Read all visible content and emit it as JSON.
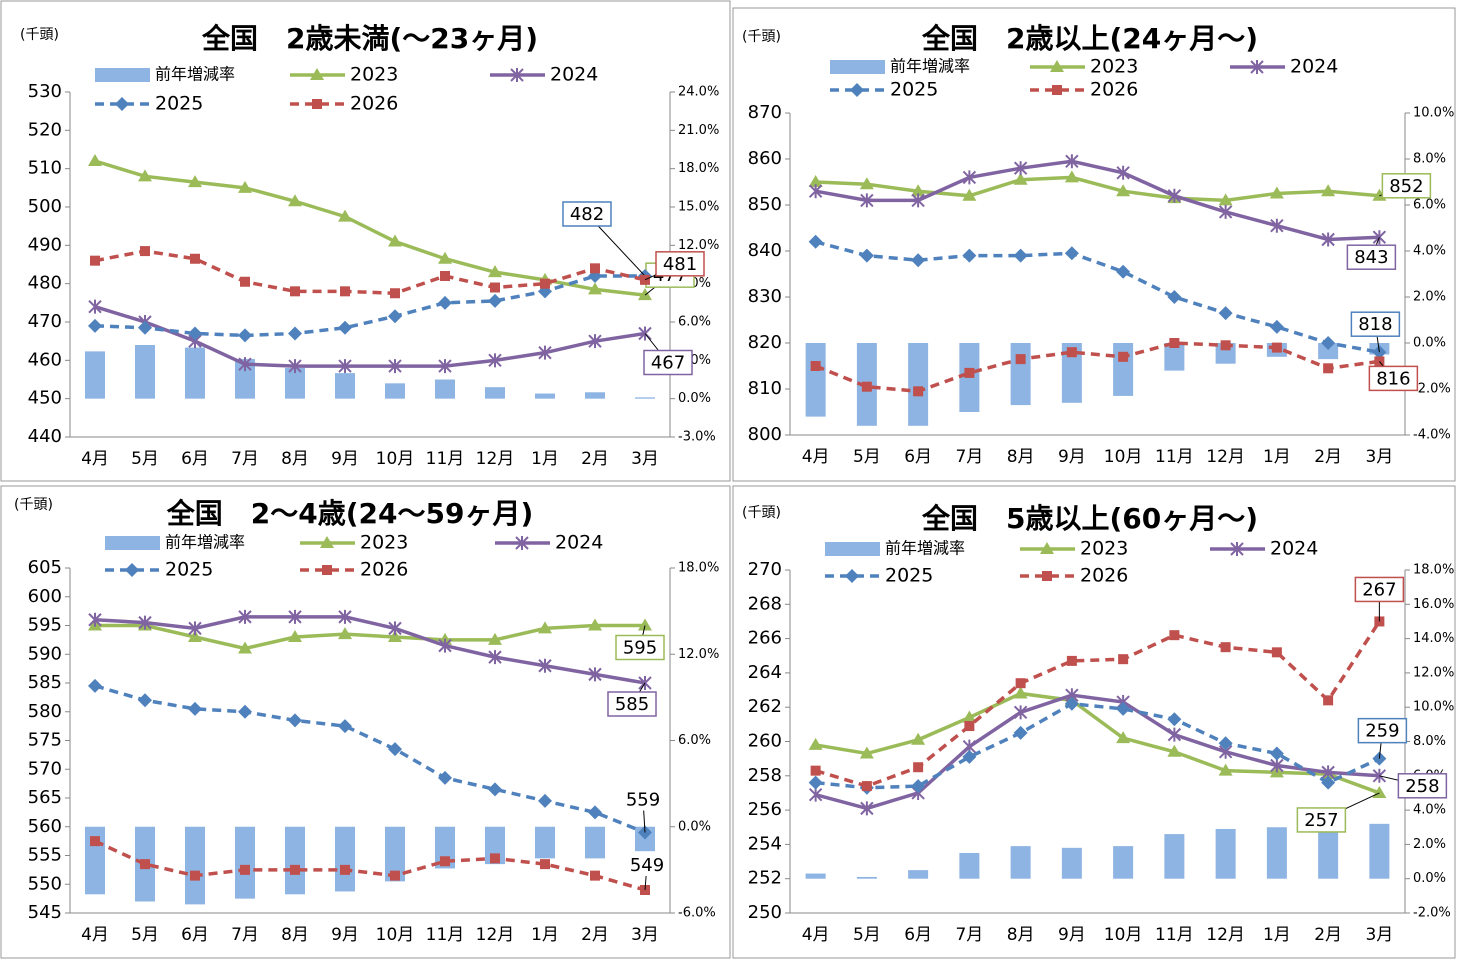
{
  "chart_data": [
    {
      "type": "combo",
      "title": "全国　2歳未満(～23ヶ月)",
      "unit_label": "(千頭)",
      "categories": [
        "4月",
        "5月",
        "6月",
        "7月",
        "8月",
        "9月",
        "10月",
        "11月",
        "12月",
        "1月",
        "2月",
        "3月"
      ],
      "series": [
        {
          "name": "前年増減率",
          "type": "bar",
          "axis": "y2",
          "color": "#8db4e2",
          "values": [
            3.7,
            4.2,
            4.0,
            3.1,
            2.4,
            2.0,
            1.2,
            1.5,
            0.9,
            0.4,
            0.5,
            0.1
          ]
        },
        {
          "name": "2023",
          "type": "line",
          "color": "#9bbb59",
          "marker": "triangle",
          "dashed": false,
          "values": [
            512,
            508,
            506.5,
            505,
            501.5,
            497.5,
            491,
            486.5,
            483,
            481,
            478.5,
            477
          ]
        },
        {
          "name": "2024",
          "type": "line",
          "color": "#8064a2",
          "marker": "cross",
          "dashed": false,
          "values": [
            474,
            470,
            465,
            459,
            458.5,
            458.5,
            458.5,
            458.5,
            460,
            462,
            465,
            467
          ]
        },
        {
          "name": "2025",
          "type": "line",
          "color": "#4f81bd",
          "marker": "diamond",
          "dashed": true,
          "values": [
            469,
            468.5,
            467,
            466.5,
            467,
            468.5,
            471.5,
            475,
            475.5,
            478,
            482,
            482
          ]
        },
        {
          "name": "2026",
          "type": "line",
          "color": "#c0504d",
          "marker": "square",
          "dashed": true,
          "values": [
            486,
            488.5,
            486.5,
            480.5,
            478,
            478,
            477.5,
            482,
            479,
            480,
            484,
            481
          ]
        }
      ],
      "ylim": [
        440,
        530
      ],
      "yticks": [
        440,
        450,
        460,
        470,
        480,
        490,
        500,
        510,
        520,
        530
      ],
      "y2lim": [
        -3,
        24
      ],
      "y2ticks": [
        {
          "value": -3,
          "label": "-3.0%"
        },
        {
          "value": 0,
          "label": "0.0%"
        },
        {
          "value": 3,
          "label": "3.0%"
        },
        {
          "value": 6,
          "label": "6.0%"
        },
        {
          "value": 9,
          "label": "9.0%"
        },
        {
          "value": 12,
          "label": "12.0%"
        },
        {
          "value": 15,
          "label": "15.0%"
        },
        {
          "value": 18,
          "label": "18.0%"
        },
        {
          "value": 21,
          "label": "21.0%"
        },
        {
          "value": 24,
          "label": "24.0%"
        }
      ]
    },
    {
      "type": "combo",
      "title": "全国　2歳以上(24ヶ月～)",
      "unit_label": "(千頭)",
      "categories": [
        "4月",
        "5月",
        "6月",
        "7月",
        "8月",
        "9月",
        "10月",
        "11月",
        "12月",
        "1月",
        "2月",
        "3月"
      ],
      "series": [
        {
          "name": "前年増減率",
          "type": "bar",
          "axis": "y2",
          "color": "#8db4e2",
          "values": [
            -3.2,
            -3.6,
            -3.6,
            -3.0,
            -2.7,
            -2.6,
            -2.3,
            -1.2,
            -0.9,
            -0.6,
            -0.7,
            -0.5
          ]
        },
        {
          "name": "2023",
          "type": "line",
          "color": "#9bbb59",
          "marker": "triangle",
          "dashed": false,
          "values": [
            855,
            854.5,
            853,
            852,
            855.5,
            856,
            853,
            851.5,
            851,
            852.5,
            853,
            852
          ]
        },
        {
          "name": "2024",
          "type": "line",
          "color": "#8064a2",
          "marker": "cross",
          "dashed": false,
          "values": [
            853,
            851,
            851,
            856,
            858,
            859.5,
            857,
            852,
            848.5,
            845.5,
            842.5,
            843
          ]
        },
        {
          "name": "2025",
          "type": "line",
          "color": "#4f81bd",
          "marker": "diamond",
          "dashed": true,
          "values": [
            842,
            839,
            838,
            839,
            839,
            839.5,
            835.5,
            830,
            826.5,
            823.5,
            820,
            818
          ]
        },
        {
          "name": "2026",
          "type": "line",
          "color": "#c0504d",
          "marker": "square",
          "dashed": true,
          "values": [
            815,
            810.5,
            809.5,
            813.5,
            816.5,
            818,
            817,
            820,
            819.5,
            819,
            814.5,
            816
          ]
        }
      ],
      "ylim": [
        800,
        870
      ],
      "yticks": [
        800,
        810,
        820,
        830,
        840,
        850,
        860,
        870
      ],
      "y2lim": [
        -4,
        10
      ],
      "y2ticks": [
        {
          "value": -4,
          "label": "-4.0%"
        },
        {
          "value": -2,
          "label": "-2.0%"
        },
        {
          "value": 0,
          "label": "0.0%"
        },
        {
          "value": 2,
          "label": "2.0%"
        },
        {
          "value": 4,
          "label": "4.0%"
        },
        {
          "value": 6,
          "label": "6.0%"
        },
        {
          "value": 8,
          "label": "8.0%"
        },
        {
          "value": 10,
          "label": "10.0%"
        }
      ]
    },
    {
      "type": "combo",
      "title": "全国　2～4歳(24～59ヶ月)",
      "unit_label": "(千頭)",
      "categories": [
        "4月",
        "5月",
        "6月",
        "7月",
        "8月",
        "9月",
        "10月",
        "11月",
        "12月",
        "1月",
        "2月",
        "3月"
      ],
      "series": [
        {
          "name": "前年増減率",
          "type": "bar",
          "axis": "y2",
          "color": "#8db4e2",
          "values": [
            -4.7,
            -5.2,
            -5.4,
            -5.0,
            -4.7,
            -4.5,
            -3.8,
            -2.9,
            -2.6,
            -2.2,
            -2.2,
            -1.7
          ]
        },
        {
          "name": "2023",
          "type": "line",
          "color": "#9bbb59",
          "marker": "triangle",
          "dashed": false,
          "values": [
            595,
            595,
            593,
            591,
            593,
            593.5,
            593,
            592.5,
            592.5,
            594.5,
            595,
            595
          ]
        },
        {
          "name": "2024",
          "type": "line",
          "color": "#8064a2",
          "marker": "cross",
          "dashed": false,
          "values": [
            596,
            595.5,
            594.5,
            596.5,
            596.5,
            596.5,
            594.5,
            591.5,
            589.5,
            588,
            586.5,
            585
          ]
        },
        {
          "name": "2025",
          "type": "line",
          "color": "#4f81bd",
          "marker": "diamond",
          "dashed": true,
          "values": [
            584.5,
            582,
            580.5,
            580,
            578.5,
            577.5,
            573.5,
            568.5,
            566.5,
            564.5,
            562.5,
            559
          ]
        },
        {
          "name": "2026",
          "type": "line",
          "color": "#c0504d",
          "marker": "square",
          "dashed": true,
          "values": [
            557.5,
            553.5,
            551.5,
            552.5,
            552.5,
            552.5,
            551.5,
            554,
            554.5,
            553.5,
            551.5,
            549
          ]
        }
      ],
      "ylim": [
        545,
        605
      ],
      "yticks": [
        545,
        550,
        555,
        560,
        565,
        570,
        575,
        580,
        585,
        590,
        595,
        600,
        605
      ],
      "y2lim": [
        -6,
        18
      ],
      "y2ticks": [
        {
          "value": -6,
          "label": "-6.0%"
        },
        {
          "value": 0,
          "label": "0.0%"
        },
        {
          "value": 6,
          "label": "6.0%"
        },
        {
          "value": 12,
          "label": "12.0%"
        },
        {
          "value": 18,
          "label": "18.0%"
        }
      ]
    },
    {
      "type": "combo",
      "title": "全国　5歳以上(60ヶ月～)",
      "unit_label": "(千頭)",
      "categories": [
        "4月",
        "5月",
        "6月",
        "7月",
        "8月",
        "9月",
        "10月",
        "11月",
        "12月",
        "1月",
        "2月",
        "3月"
      ],
      "series": [
        {
          "name": "前年増減率",
          "type": "bar",
          "axis": "y2",
          "color": "#8db4e2",
          "values": [
            0.3,
            0.1,
            0.5,
            1.5,
            1.9,
            1.8,
            1.9,
            2.6,
            2.9,
            3.0,
            3.1,
            3.2
          ]
        },
        {
          "name": "2023",
          "type": "line",
          "color": "#9bbb59",
          "marker": "triangle",
          "dashed": false,
          "values": [
            259.8,
            259.3,
            260.1,
            261.4,
            262.8,
            262.4,
            260.2,
            259.4,
            258.3,
            258.2,
            258.1,
            257
          ]
        },
        {
          "name": "2024",
          "type": "line",
          "color": "#8064a2",
          "marker": "cross",
          "dashed": false,
          "values": [
            256.9,
            256.1,
            257.0,
            259.7,
            261.7,
            262.7,
            262.3,
            260.4,
            259.4,
            258.6,
            258.2,
            258
          ]
        },
        {
          "name": "2025",
          "type": "line",
          "color": "#4f81bd",
          "marker": "diamond",
          "dashed": true,
          "values": [
            257.6,
            257.3,
            257.4,
            259.1,
            260.5,
            262.2,
            261.9,
            261.3,
            259.9,
            259.3,
            257.6,
            259
          ]
        },
        {
          "name": "2026",
          "type": "line",
          "color": "#c0504d",
          "marker": "square",
          "dashed": true,
          "values": [
            258.3,
            257.4,
            258.5,
            260.9,
            263.4,
            264.7,
            264.8,
            266.2,
            265.5,
            265.2,
            262.4,
            267
          ]
        }
      ],
      "ylim": [
        250,
        270
      ],
      "yticks": [
        250,
        252,
        254,
        256,
        258,
        260,
        262,
        264,
        266,
        268,
        270
      ],
      "y2lim": [
        -2,
        18
      ],
      "y2ticks": [
        {
          "value": -2,
          "label": "-2.0%"
        },
        {
          "value": 0,
          "label": "0.0%"
        },
        {
          "value": 2,
          "label": "2.0%"
        },
        {
          "value": 4,
          "label": "4.0%"
        },
        {
          "value": 6,
          "label": "6.0%"
        },
        {
          "value": 8,
          "label": "8.0%"
        },
        {
          "value": 10,
          "label": "10.0%"
        },
        {
          "value": 12,
          "label": "12.0%"
        },
        {
          "value": 14,
          "label": "14.0%"
        },
        {
          "value": 16,
          "label": "16.0%"
        },
        {
          "value": 18,
          "label": "18.0%"
        }
      ]
    }
  ]
}
